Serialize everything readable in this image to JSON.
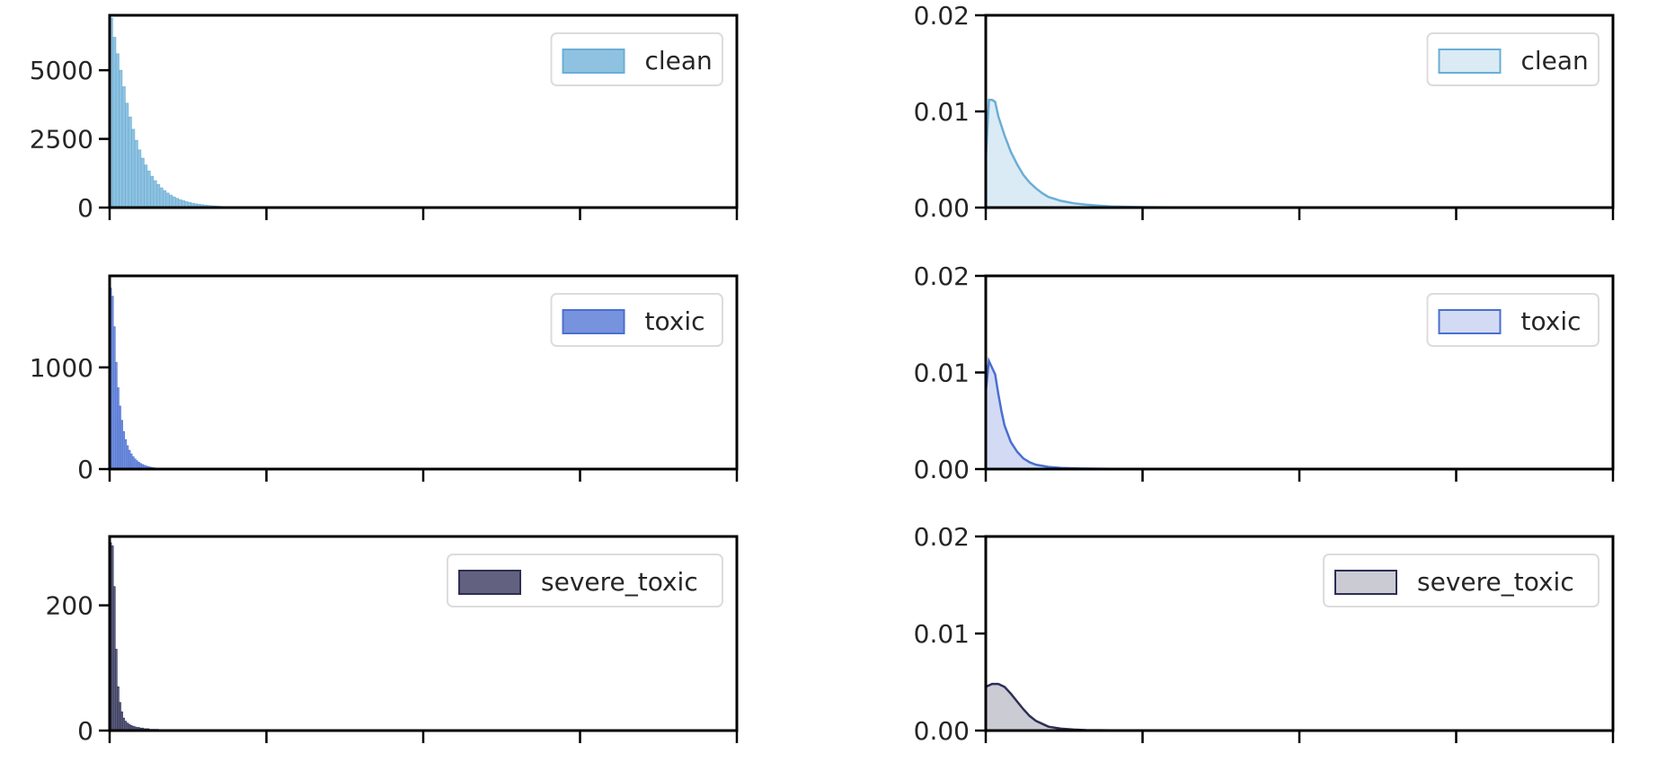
{
  "chart_data": [
    {
      "type": "histogram",
      "panel": "clean-histogram",
      "legend": "clean",
      "color": "#6aaed6",
      "alpha": 0.75,
      "ylim": [
        0,
        7000
      ],
      "yticks": [
        0,
        2500,
        5000
      ],
      "ytick_labels": [
        "0",
        "2500",
        "5000"
      ],
      "xlim": [
        0,
        1
      ],
      "xticks": [
        0,
        0.25,
        0.5,
        0.75,
        1.0
      ],
      "show_xtick_labels": false,
      "bin_width": 0.005,
      "values": [
        6900,
        6200,
        5600,
        5000,
        4400,
        3800,
        3300,
        2850,
        2450,
        2100,
        1800,
        1550,
        1330,
        1140,
        980,
        840,
        720,
        620,
        530,
        455,
        390,
        335,
        290,
        250,
        215,
        185,
        160,
        138,
        120,
        104,
        90,
        78,
        68,
        59,
        51,
        44,
        38,
        33,
        29,
        25,
        22,
        19,
        16,
        14,
        12,
        10,
        9,
        8,
        7,
        6,
        5,
        4,
        3,
        2,
        1
      ]
    },
    {
      "type": "area",
      "panel": "clean-kde",
      "legend": "clean",
      "color": "#6aaed6",
      "fill_alpha": 0.25,
      "ylim": [
        0,
        0.02
      ],
      "yticks": [
        0,
        0.01,
        0.02
      ],
      "ytick_labels": [
        "0.00",
        "0.01",
        "0.02"
      ],
      "xlim": [
        0,
        1
      ],
      "xticks": [
        0,
        0.25,
        0.5,
        0.75,
        1.0
      ],
      "show_xtick_labels": false,
      "x": [
        0,
        0.005,
        0.01,
        0.015,
        0.02,
        0.03,
        0.04,
        0.05,
        0.06,
        0.07,
        0.08,
        0.09,
        0.1,
        0.12,
        0.14,
        0.16,
        0.18,
        0.2,
        0.25,
        0.3,
        0.4,
        0.5,
        0.7,
        1.0
      ],
      "y": [
        0.005,
        0.0112,
        0.0112,
        0.011,
        0.0095,
        0.0075,
        0.0058,
        0.0045,
        0.0034,
        0.0026,
        0.002,
        0.0015,
        0.0011,
        0.0007,
        0.00045,
        0.0003,
        0.0002,
        0.00012,
        5e-05,
        2e-05,
        1e-05,
        0,
        0,
        0
      ]
    },
    {
      "type": "histogram",
      "panel": "toxic-histogram",
      "legend": "toxic",
      "color": "#4a6fd1",
      "alpha": 0.75,
      "ylim": [
        0,
        1900
      ],
      "yticks": [
        0,
        1000
      ],
      "ytick_labels": [
        "0",
        "1000"
      ],
      "xlim": [
        0,
        1
      ],
      "xticks": [
        0,
        0.25,
        0.5,
        0.75,
        1.0
      ],
      "show_xtick_labels": false,
      "bin_width": 0.003,
      "values": [
        1780,
        1700,
        1400,
        1050,
        800,
        620,
        480,
        370,
        290,
        230,
        185,
        150,
        122,
        100,
        82,
        67,
        55,
        45,
        37,
        30,
        25,
        20,
        16,
        13,
        11,
        9,
        7,
        6,
        5,
        4,
        3,
        3,
        2,
        2,
        1
      ]
    },
    {
      "type": "area",
      "panel": "toxic-kde",
      "legend": "toxic",
      "color": "#4a6fd1",
      "fill_alpha": 0.25,
      "ylim": [
        0,
        0.02
      ],
      "yticks": [
        0,
        0.01,
        0.02
      ],
      "ytick_labels": [
        "0.00",
        "0.01",
        "0.02"
      ],
      "xlim": [
        0,
        1
      ],
      "xticks": [
        0,
        0.25,
        0.5,
        0.75,
        1.0
      ],
      "show_xtick_labels": false,
      "x": [
        0,
        0.005,
        0.01,
        0.015,
        0.02,
        0.025,
        0.03,
        0.04,
        0.05,
        0.06,
        0.07,
        0.08,
        0.1,
        0.12,
        0.15,
        0.2,
        0.25,
        0.3,
        0.5,
        0.7,
        1.0
      ],
      "y": [
        0.008,
        0.0112,
        0.0105,
        0.0098,
        0.0078,
        0.006,
        0.0045,
        0.0028,
        0.0018,
        0.0011,
        0.0007,
        0.00045,
        0.00022,
        0.00012,
        6e-05,
        2e-05,
        1e-05,
        0,
        0,
        0,
        0
      ]
    },
    {
      "type": "histogram",
      "panel": "severe-toxic-histogram",
      "legend": "severe_toxic",
      "color": "#2e2e55",
      "alpha": 0.75,
      "ylim": [
        0,
        310
      ],
      "yticks": [
        0,
        200
      ],
      "ytick_labels": [
        "0",
        "200"
      ],
      "xlim": [
        0,
        1
      ],
      "xticks": [
        0,
        0.25,
        0.5,
        0.75,
        1.0
      ],
      "show_xtick_labels": false,
      "bin_width": 0.003,
      "values": [
        300,
        295,
        230,
        130,
        70,
        45,
        30,
        20,
        15,
        12,
        10,
        8,
        7,
        6,
        5,
        5,
        4,
        4,
        3,
        3,
        3,
        2,
        2,
        2,
        2,
        2,
        1,
        1,
        1,
        1
      ],
      "sparse_points": [
        [
          0.175,
          1
        ],
        [
          0.2,
          1
        ],
        [
          0.225,
          1
        ],
        [
          0.26,
          1
        ],
        [
          0.3,
          1
        ],
        [
          0.33,
          1
        ],
        [
          0.38,
          1
        ],
        [
          0.43,
          1
        ],
        [
          0.5,
          1
        ],
        [
          0.52,
          1
        ],
        [
          0.55,
          1
        ],
        [
          0.6,
          1
        ],
        [
          0.63,
          1
        ],
        [
          0.66,
          1
        ]
      ]
    },
    {
      "type": "area",
      "panel": "severe-toxic-kde",
      "legend": "severe_toxic",
      "color": "#2e2e55",
      "fill_alpha": 0.25,
      "ylim": [
        0,
        0.02
      ],
      "yticks": [
        0,
        0.01,
        0.02
      ],
      "ytick_labels": [
        "0.00",
        "0.01",
        "0.02"
      ],
      "xlim": [
        0,
        1
      ],
      "xticks": [
        0,
        0.25,
        0.5,
        0.75,
        1.0
      ],
      "show_xtick_labels": false,
      "x": [
        0,
        0.01,
        0.02,
        0.03,
        0.04,
        0.05,
        0.06,
        0.07,
        0.08,
        0.09,
        0.1,
        0.12,
        0.14,
        0.16,
        0.2,
        0.25,
        0.3,
        0.4,
        0.6,
        1.0
      ],
      "y": [
        0.0045,
        0.0048,
        0.0048,
        0.0045,
        0.0038,
        0.003,
        0.0022,
        0.0015,
        0.001,
        0.0007,
        0.0004,
        0.0002,
        0.0001,
        5e-05,
        2e-05,
        1e-05,
        0,
        0,
        0,
        0
      ]
    }
  ]
}
